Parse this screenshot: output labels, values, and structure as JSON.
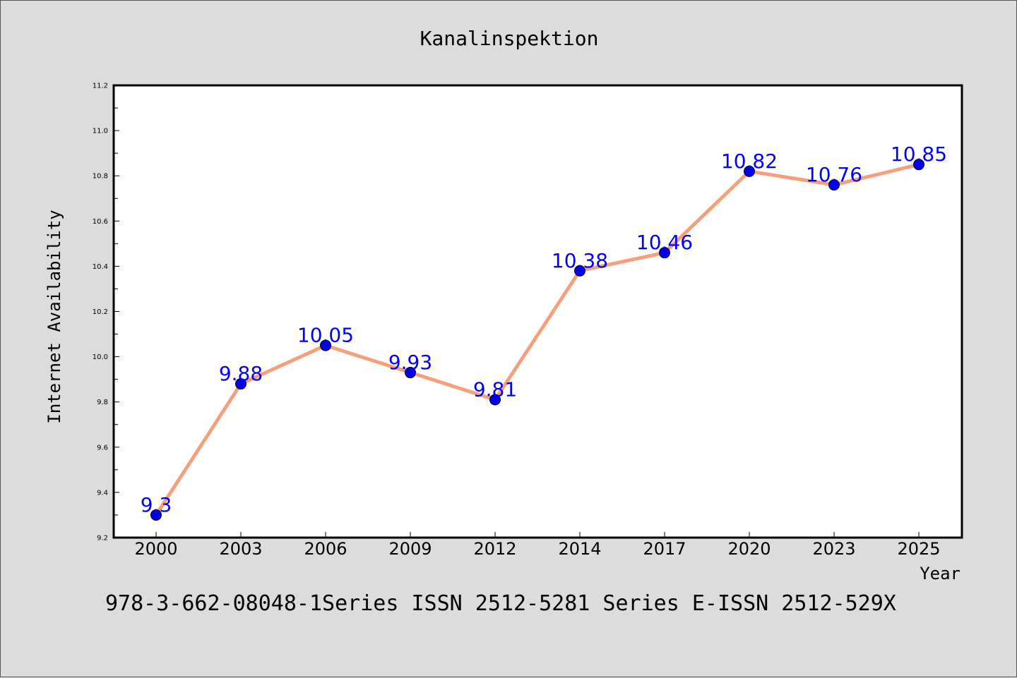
{
  "chart_data": {
    "type": "line",
    "title": "Kanalinspektion",
    "xlabel": "Year",
    "ylabel": "Internet Availability",
    "categories": [
      "2000",
      "2003",
      "2006",
      "2009",
      "2012",
      "2014",
      "2017",
      "2020",
      "2023",
      "2025"
    ],
    "series": [
      {
        "values": [
          9.3,
          9.88,
          10.05,
          9.93,
          9.81,
          10.38,
          10.46,
          10.82,
          10.76,
          10.85
        ]
      }
    ],
    "data_labels": [
      "9.3",
      "9.88",
      "10.05",
      "9.93",
      "9.81",
      "10.38",
      "10.46",
      "10.82",
      "10.76",
      "10.85"
    ],
    "ylim": [
      9.2,
      11.2
    ],
    "yticks": [
      "9.2",
      "9.4",
      "9.6",
      "9.8",
      "10.0",
      "10.2",
      "10.4",
      "10.6",
      "10.8",
      "11.0",
      "11.2"
    ],
    "grid": false,
    "legend": "none",
    "colors": {
      "line": "#f4a07c",
      "marker": "#0000ee",
      "data_label": "#0000ff",
      "background": "#dcdcdc",
      "plot_background": "#ffffff"
    }
  },
  "footer": {
    "text": "978-3-662-08048-1Series ISSN 2512-5281 Series E-ISSN 2512-529X"
  }
}
